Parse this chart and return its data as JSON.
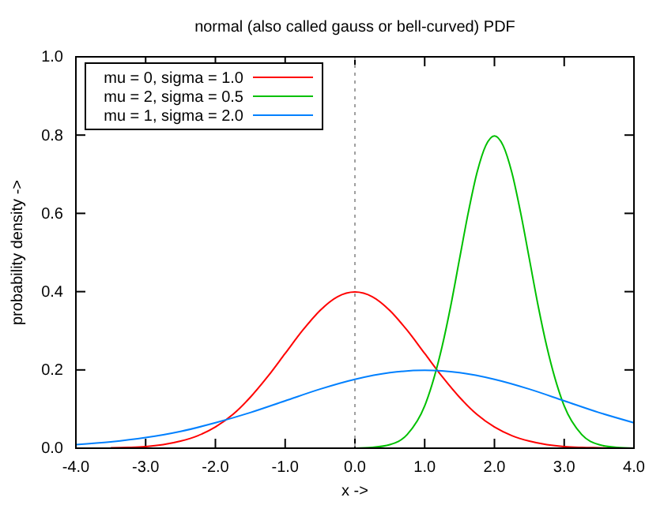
{
  "chart_data": {
    "type": "line",
    "title": "normal (also called gauss or bell-curved) PDF",
    "xlabel": "x ->",
    "ylabel": "probability density ->",
    "xlim": [
      -4,
      4
    ],
    "ylim": [
      0,
      1
    ],
    "xticks": [
      {
        "value": -4,
        "label": "-4.0"
      },
      {
        "value": -3,
        "label": "-3.0"
      },
      {
        "value": -2,
        "label": "-2.0"
      },
      {
        "value": -1,
        "label": "-1.0"
      },
      {
        "value": 0,
        "label": "0.0"
      },
      {
        "value": 1,
        "label": "1.0"
      },
      {
        "value": 2,
        "label": "2.0"
      },
      {
        "value": 3,
        "label": "3.0"
      },
      {
        "value": 4,
        "label": "4.0"
      }
    ],
    "yticks": [
      {
        "value": 0,
        "label": "0.0"
      },
      {
        "value": 0.2,
        "label": "0.2"
      },
      {
        "value": 0.4,
        "label": "0.4"
      },
      {
        "value": 0.6,
        "label": "0.6"
      },
      {
        "value": 0.8,
        "label": "0.8"
      },
      {
        "value": 1,
        "label": "1.0"
      }
    ],
    "grid": false,
    "legend": "top left",
    "marker": "none",
    "line_style": "solid",
    "ref_lines": [
      {
        "axis": "x",
        "value": 0,
        "color": "#a0a0a0",
        "line_style": "dotted"
      }
    ],
    "series": [
      {
        "name": "mu = 0, sigma = 1.0",
        "color": "#ff0000",
        "x": [
          -3.5,
          -3.25,
          -3,
          -2.75,
          -2.5,
          -2.25,
          -2,
          -1.75,
          -1.5,
          -1.25,
          -1,
          -0.75,
          -0.5,
          -0.25,
          0,
          0.25,
          0.5,
          0.75,
          1,
          1.25,
          1.5,
          1.75,
          2,
          2.25,
          2.5,
          2.75,
          3,
          3.25,
          3.5,
          3.75,
          4
        ],
        "values": [
          0.001,
          0.002,
          0.004,
          0.009,
          0.018,
          0.032,
          0.054,
          0.086,
          0.13,
          0.183,
          0.242,
          0.301,
          0.352,
          0.387,
          0.399,
          0.387,
          0.352,
          0.301,
          0.242,
          0.183,
          0.13,
          0.086,
          0.054,
          0.032,
          0.018,
          0.009,
          0.004,
          0.002,
          0.001,
          0,
          0
        ]
      },
      {
        "name": "mu = 2, sigma = 0.5",
        "color": "#00c000",
        "x": [
          0,
          0.25,
          0.5,
          0.75,
          1,
          1.25,
          1.375,
          1.5,
          1.625,
          1.75,
          1.875,
          2,
          2.125,
          2.25,
          2.375,
          2.5,
          2.625,
          2.75,
          3,
          3.25,
          3.5,
          3.75,
          4
        ],
        "values": [
          0,
          0.002,
          0.009,
          0.035,
          0.108,
          0.26,
          0.365,
          0.484,
          0.602,
          0.704,
          0.773,
          0.798,
          0.773,
          0.704,
          0.602,
          0.484,
          0.365,
          0.26,
          0.108,
          0.035,
          0.009,
          0.002,
          0
        ]
      },
      {
        "name": "mu = 1, sigma = 2.0",
        "color": "#0080ff",
        "x": [
          -4,
          -3.5,
          -3,
          -2.5,
          -2,
          -1.5,
          -1,
          -0.5,
          0,
          0.5,
          1,
          1.5,
          2,
          2.5,
          3,
          3.5,
          4
        ],
        "values": [
          0.009,
          0.016,
          0.027,
          0.043,
          0.065,
          0.091,
          0.121,
          0.151,
          0.176,
          0.193,
          0.199,
          0.193,
          0.176,
          0.151,
          0.121,
          0.091,
          0.065
        ]
      }
    ]
  }
}
